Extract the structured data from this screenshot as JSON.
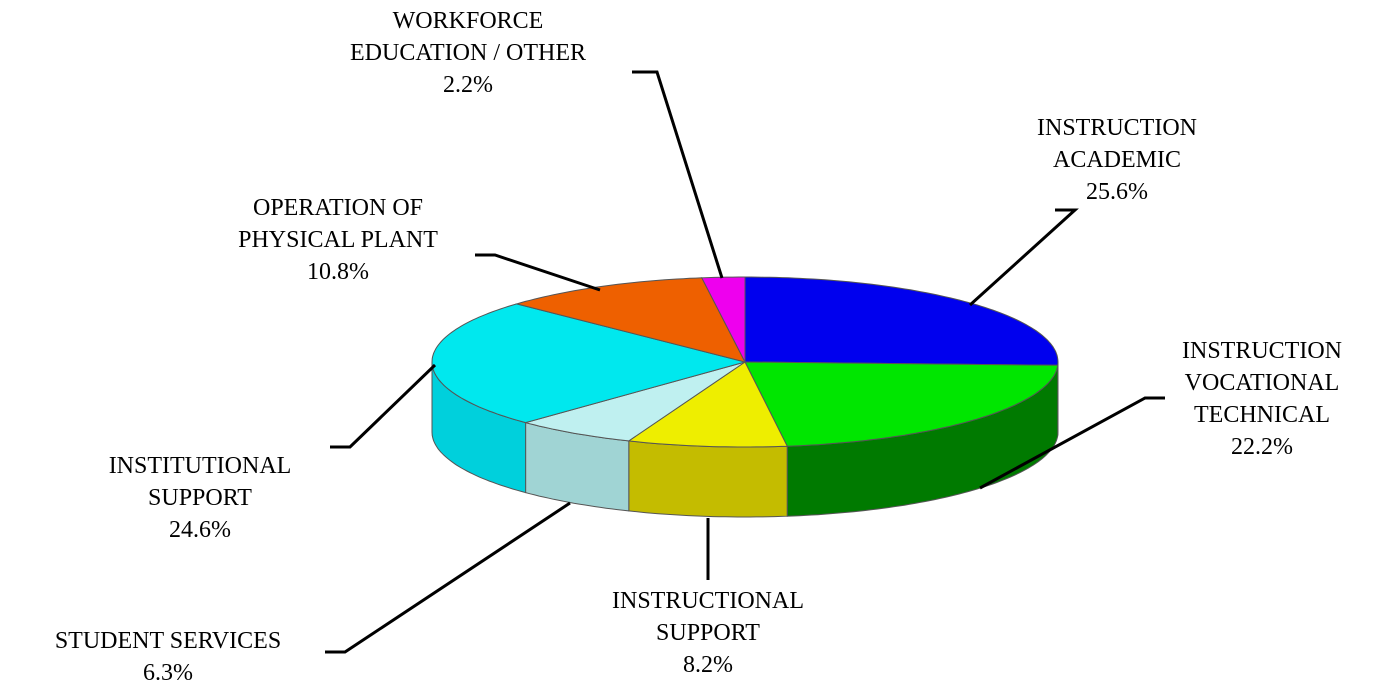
{
  "chart_data": {
    "type": "pie3d",
    "categories": [
      "INSTRUCTION\nACADEMIC",
      "INSTRUCTION\nVOCATIONAL\nTECHNICAL",
      "INSTRUCTIONAL\nSUPPORT",
      "STUDENT SERVICES",
      "INSTITUTIONAL\nSUPPORT",
      "OPERATION OF\nPHYSICAL PLANT",
      "WORKFORCE\nEDUCATION / OTHER"
    ],
    "values": [
      25.6,
      22.2,
      8.2,
      6.3,
      24.6,
      10.8,
      2.2
    ],
    "value_labels": [
      "25.6%",
      "22.2%",
      "8.2%",
      "6.3%",
      "24.6%",
      "10.8%",
      "2.2%"
    ],
    "colors": [
      "#0000ee",
      "#00e600",
      "#eeee00",
      "#bff0f0",
      "#00e8ee",
      "#ee6000",
      "#ee00ee"
    ],
    "side_colors": [
      "#0000a0",
      "#007a00",
      "#c4bc00",
      "#a0d4d4",
      "#00d0dc",
      "#b04400",
      "#a000a0"
    ]
  }
}
